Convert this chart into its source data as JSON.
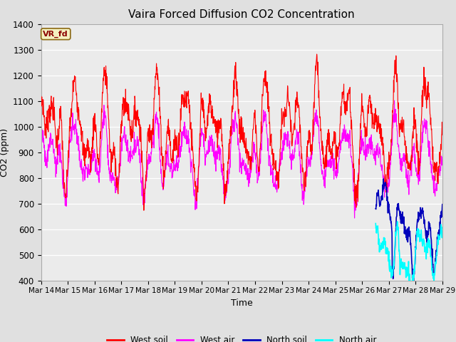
{
  "title": "Vaira Forced Diffusion CO2 Concentration",
  "xlabel": "Time",
  "ylabel": "CO2 (ppm)",
  "ylim": [
    400,
    1400
  ],
  "yticks": [
    400,
    500,
    600,
    700,
    800,
    900,
    1000,
    1100,
    1200,
    1300,
    1400
  ],
  "x_tick_labels": [
    "Mar 14",
    "Mar 15",
    "Mar 16",
    "Mar 17",
    "Mar 18",
    "Mar 19",
    "Mar 20",
    "Mar 21",
    "Mar 22",
    "Mar 23",
    "Mar 24",
    "Mar 25",
    "Mar 26",
    "Mar 27",
    "Mar 28",
    "Mar 29"
  ],
  "label_box_text": "VR_fd",
  "label_box_color": "#f5f0c0",
  "label_box_border": "#8B6914",
  "west_soil_color": "#ff0000",
  "west_air_color": "#ff00ff",
  "north_soil_color": "#0000bb",
  "north_air_color": "#00ffff",
  "bg_color": "#e0e0e0",
  "plot_bg_color": "#ebebeb",
  "grid_color": "#ffffff",
  "n_points": 1500,
  "seed": 7
}
